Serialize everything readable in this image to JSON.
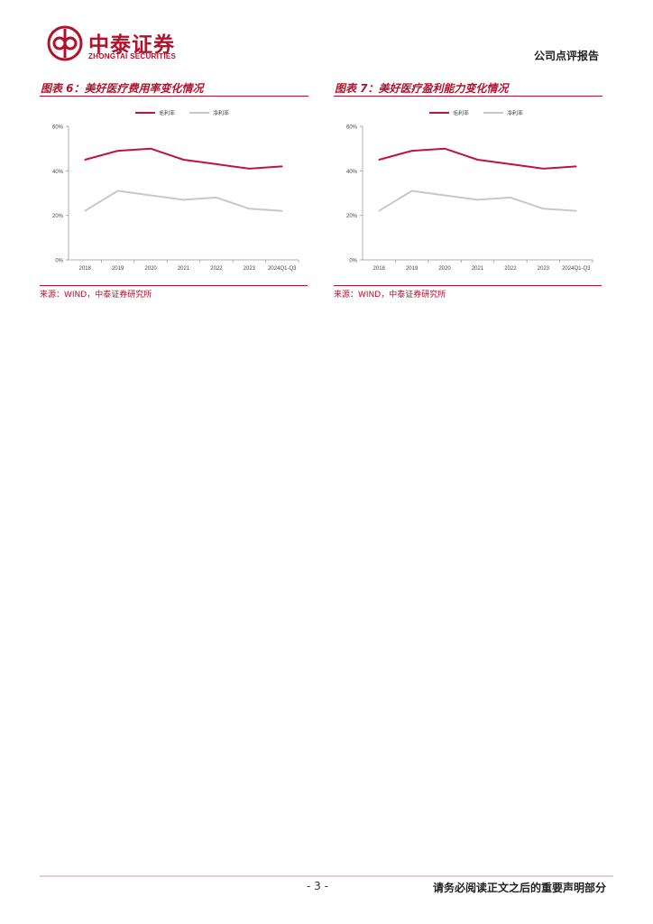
{
  "header": {
    "logo_cn": "中泰证券",
    "logo_en": "ZHONGTAI SECURITIES",
    "report_type": "公司点评报告"
  },
  "figures": [
    {
      "title": "图表 6：美好医疗费用率变化情况",
      "source": "来源：WIND，中泰证券研究所"
    },
    {
      "title": "图表 7：美好医疗盈利能力变化情况",
      "source": "来源：WIND，中泰证券研究所"
    }
  ],
  "footer": {
    "page_number": "- 3 -",
    "note": "请务必阅读正文之后的重要声明部分"
  },
  "chart_data": [
    {
      "type": "line",
      "categories": [
        "2018",
        "2019",
        "2020",
        "2021",
        "2022",
        "2023",
        "2024Q1-Q3"
      ],
      "ylim": [
        0,
        60
      ],
      "yticks": [
        "0%",
        "20%",
        "40%",
        "60%"
      ],
      "grid": false,
      "legend_position": "top",
      "series": [
        {
          "name": "毛利率",
          "color": "#c0143c",
          "values": [
            45,
            49,
            50,
            45,
            43,
            41,
            42
          ]
        },
        {
          "name": "净利率",
          "color": "#c8c8c8",
          "values": [
            22,
            31,
            29,
            27,
            28,
            23,
            22
          ]
        }
      ]
    },
    {
      "type": "line",
      "categories": [
        "2018",
        "2019",
        "2020",
        "2021",
        "2022",
        "2023",
        "2024Q1-Q3"
      ],
      "ylim": [
        0,
        60
      ],
      "yticks": [
        "0%",
        "20%",
        "40%",
        "60%"
      ],
      "grid": false,
      "legend_position": "top",
      "series": [
        {
          "name": "毛利率",
          "color": "#c0143c",
          "values": [
            45,
            49,
            50,
            45,
            43,
            41,
            42
          ]
        },
        {
          "name": "净利率",
          "color": "#c8c8c8",
          "values": [
            22,
            31,
            29,
            27,
            28,
            23,
            22
          ]
        }
      ]
    }
  ]
}
